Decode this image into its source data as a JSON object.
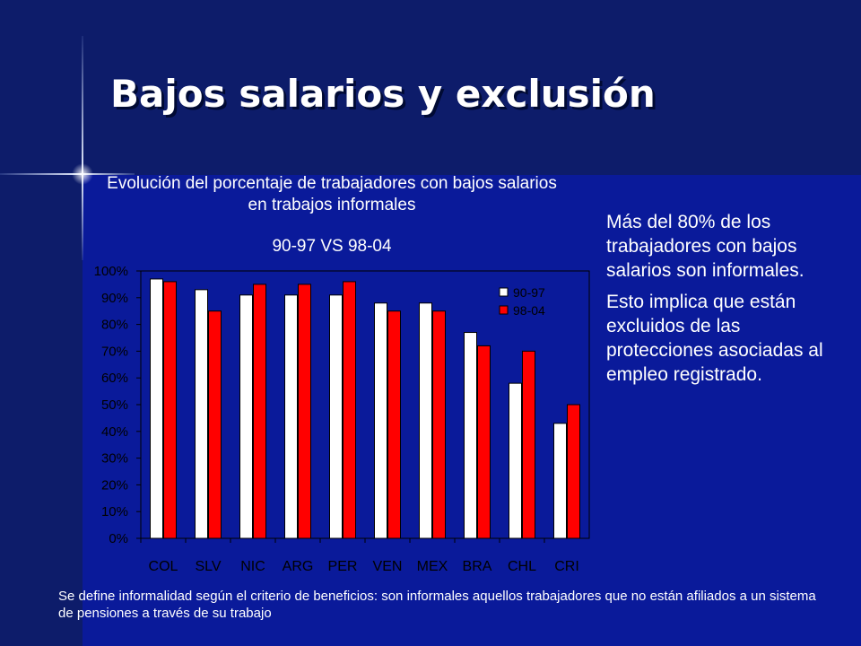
{
  "slide": {
    "title": "Bajos salarios y exclusión",
    "chart_title": "Evolución del porcentaje de trabajadores con bajos salarios en trabajos informales",
    "chart_subtitle": "90-97 VS 98-04",
    "side_text": [
      "Más del 80% de los trabajadores con bajos salarios son informales.",
      "Esto implica que están excluidos de las protecciones asociadas al empleo registrado."
    ],
    "footnote": "Se define informalidad según el criterio de beneficios: son informales aquellos trabajadores que no están afiliados a un sistema de pensiones a través de su trabajo"
  },
  "colors": {
    "background": "#0a1a9a",
    "series_1": "#ffffff",
    "series_2": "#ff0000",
    "axis_text": "#000000"
  },
  "chart_data": {
    "type": "bar",
    "title": "Evolución del porcentaje de trabajadores con bajos salarios en trabajos informales",
    "subtitle": "90-97 VS 98-04",
    "categories": [
      "COL",
      "SLV",
      "NIC",
      "ARG",
      "PER",
      "VEN",
      "MEX",
      "BRA",
      "CHL",
      "CRI"
    ],
    "series": [
      {
        "name": "90-97",
        "values": [
          97,
          93,
          91,
          91,
          91,
          88,
          88,
          77,
          58,
          43
        ]
      },
      {
        "name": "98-04",
        "values": [
          96,
          85,
          95,
          95,
          96,
          85,
          85,
          72,
          70,
          50
        ]
      }
    ],
    "yticks": [
      "0%",
      "10%",
      "20%",
      "30%",
      "40%",
      "50%",
      "60%",
      "70%",
      "80%",
      "90%",
      "100%"
    ],
    "ylim": [
      0,
      100
    ],
    "legend": "top-right",
    "grid": false
  }
}
